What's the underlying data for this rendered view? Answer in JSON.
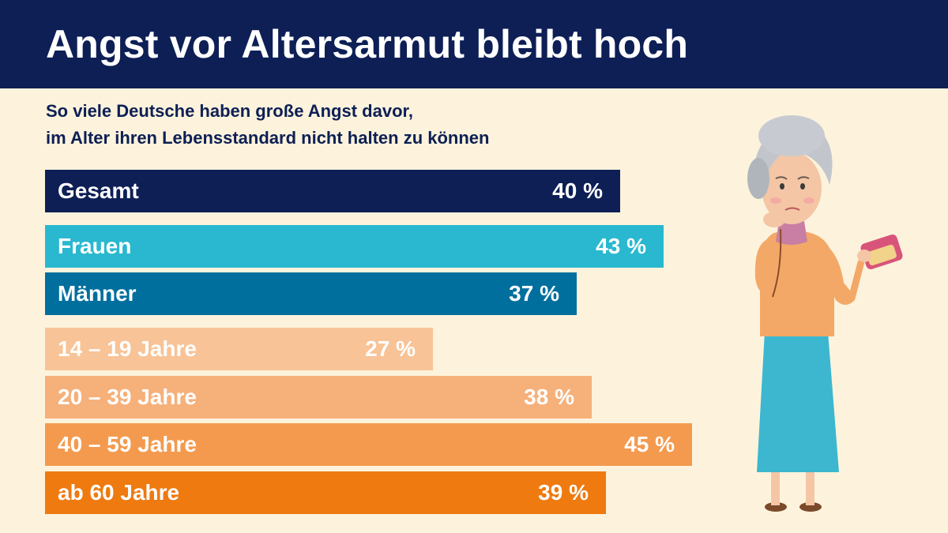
{
  "header": {
    "title": "Angst vor Altersarmut bleibt hoch"
  },
  "subtitle_lines": [
    "So viele Deutsche haben große Angst davor,",
    "im Alter ihren Lebensstandard nicht halten zu können"
  ],
  "chart_data": {
    "type": "bar",
    "orientation": "horizontal",
    "unit": "%",
    "categories": [
      "Gesamt",
      "Frauen",
      "Männer",
      "14 – 19 Jahre",
      "20 – 39 Jahre",
      "40 – 59 Jahre",
      "ab 60 Jahre"
    ],
    "values": [
      40,
      43,
      37,
      27,
      38,
      45,
      39
    ],
    "value_labels": [
      "40 %",
      "43 %",
      "37 %",
      "27 %",
      "38 %",
      "45 %",
      "39 %"
    ],
    "colors": [
      "#0d1f55",
      "#29b8cf",
      "#006f9e",
      "#f8c396",
      "#f6b07a",
      "#f49a4e",
      "#ee7a10"
    ],
    "label_colors": [
      "#ffffff",
      "#ffffff",
      "#ffffff",
      "#ffffff",
      "#ffffff",
      "#ffffff",
      "#ffffff"
    ]
  },
  "illustration": {
    "name": "elderly-woman-with-wallet"
  }
}
